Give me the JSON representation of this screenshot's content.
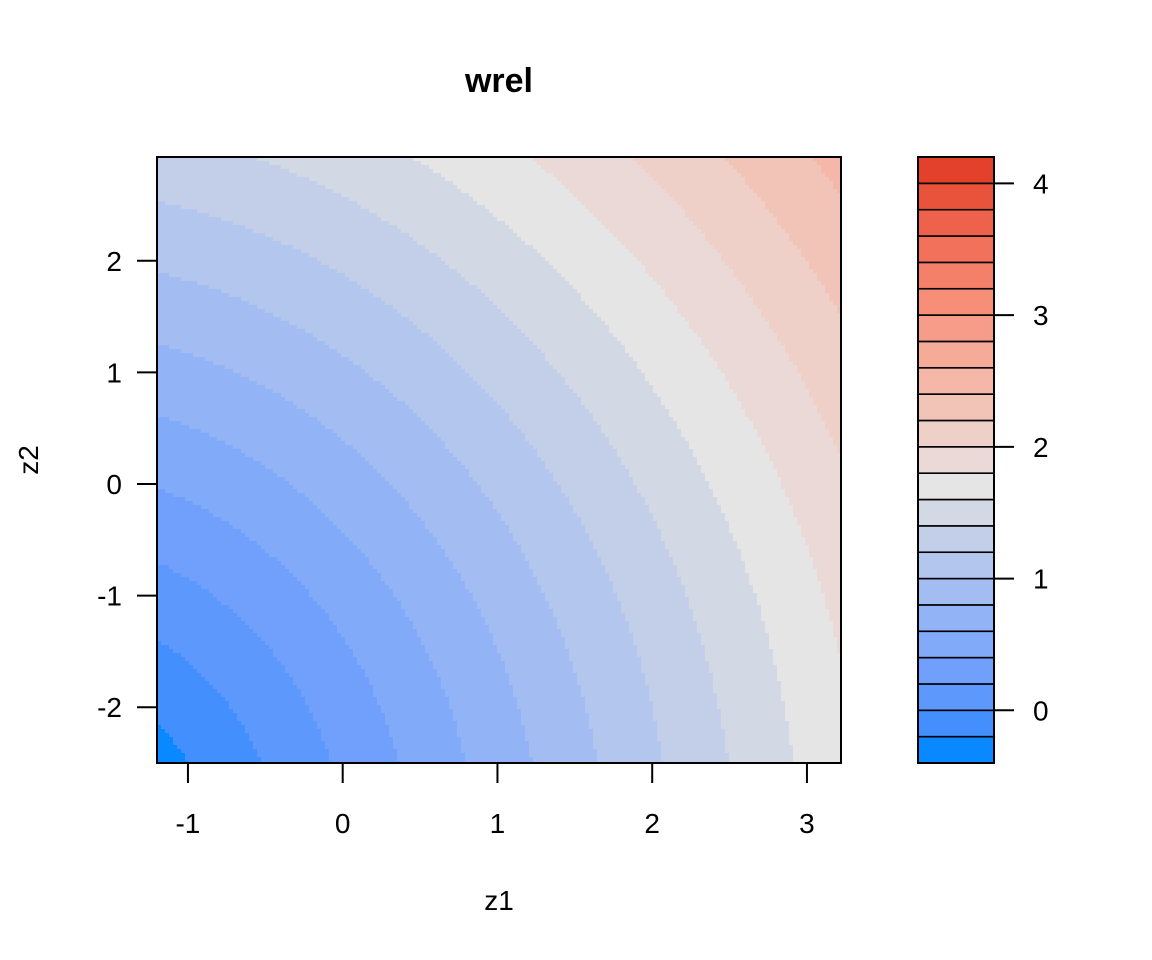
{
  "chart_data": {
    "type": "heatmap",
    "subtype": "filled-contour",
    "title": "wrel",
    "xlabel": "z1",
    "ylabel": "z2",
    "xlim": [
      -1.2,
      3.22
    ],
    "ylim": [
      -2.5,
      2.93
    ],
    "x_ticks": [
      -1,
      0,
      1,
      2,
      3
    ],
    "y_ticks": [
      -2,
      -1,
      0,
      1,
      2
    ],
    "x_tick_labels": [
      "-1",
      "0",
      "1",
      "2",
      "3"
    ],
    "y_tick_labels": [
      "-2",
      "-1",
      "0",
      "1",
      "2"
    ],
    "color_levels": [
      -0.4,
      -0.2,
      0.0,
      0.2,
      0.4,
      0.6,
      0.8,
      1.0,
      1.2,
      1.4,
      1.6,
      1.8,
      2.0,
      2.2,
      2.4,
      2.6,
      2.8,
      3.0,
      3.2,
      3.4,
      3.6,
      3.8,
      4.0,
      4.2
    ],
    "level_colors": [
      "#0a88ff",
      "#438ffe",
      "#5d98fd",
      "#70a0fc",
      "#81aaf9",
      "#92b3f6",
      "#a3bdf2",
      "#b3c6ee",
      "#c3cfe9",
      "#d3d9e4",
      "#e5e5e5",
      "#ead9d7",
      "#eed0c9",
      "#f2c4b8",
      "#f5b7a8",
      "#f6aa98",
      "#f79c88",
      "#f78f78",
      "#f58069",
      "#f2715a",
      "#ee624b",
      "#e9523b",
      "#e4412c"
    ],
    "colorbar_ticks": [
      0,
      1,
      2,
      3,
      4
    ],
    "colorbar_tick_labels": [
      "0",
      "1",
      "2",
      "3",
      "4"
    ]
  }
}
